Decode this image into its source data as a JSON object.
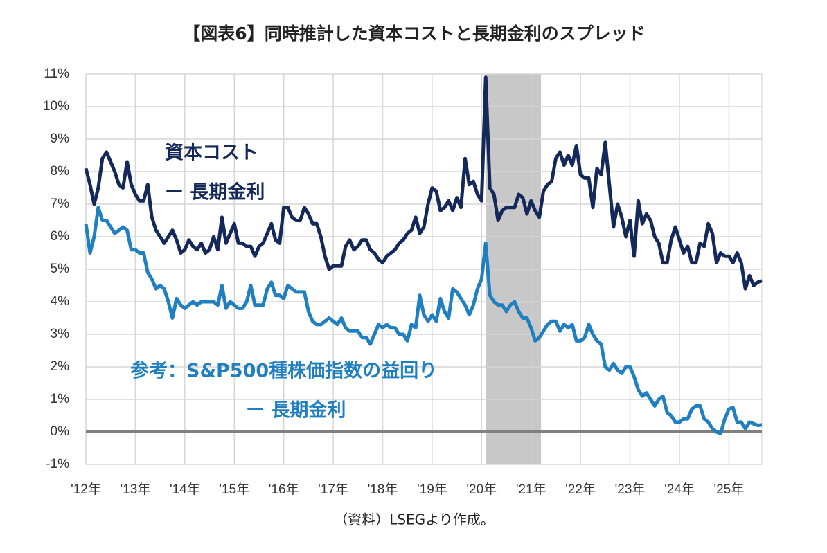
{
  "chart_data": {
    "type": "line",
    "title": "【図表6】同時推計した資本コストと長期金利のスプレッド",
    "source": "（資料）LSEGより作成。",
    "xlim": [
      2012,
      2025.667
    ],
    "ylim": [
      -1,
      11
    ],
    "xticks": [
      {
        "value": 2012,
        "label": "'12年"
      },
      {
        "value": 2013,
        "label": "'13年"
      },
      {
        "value": 2014,
        "label": "'14年"
      },
      {
        "value": 2015,
        "label": "'15年"
      },
      {
        "value": 2016,
        "label": "'16年"
      },
      {
        "value": 2017,
        "label": "'17年"
      },
      {
        "value": 2018,
        "label": "'18年"
      },
      {
        "value": 2019,
        "label": "'19年"
      },
      {
        "value": 2020,
        "label": "'20年"
      },
      {
        "value": 2021,
        "label": "'21年"
      },
      {
        "value": 2022,
        "label": "'22年"
      },
      {
        "value": 2023,
        "label": "'23年"
      },
      {
        "value": 2024,
        "label": "'24年"
      },
      {
        "value": 2025,
        "label": "'25年"
      }
    ],
    "yticks": [
      {
        "value": -1,
        "label": "-1%"
      },
      {
        "value": 0,
        "label": "0%"
      },
      {
        "value": 1,
        "label": "1%"
      },
      {
        "value": 2,
        "label": "2%"
      },
      {
        "value": 3,
        "label": "3%"
      },
      {
        "value": 4,
        "label": "4%"
      },
      {
        "value": 5,
        "label": "5%"
      },
      {
        "value": 6,
        "label": "6%"
      },
      {
        "value": 7,
        "label": "7%"
      },
      {
        "value": 8,
        "label": "8%"
      },
      {
        "value": 9,
        "label": "9%"
      },
      {
        "value": 10,
        "label": "10%"
      },
      {
        "value": 11,
        "label": "11%"
      }
    ],
    "grid": true,
    "zero_line": true,
    "shaded_xrange": [
      2020.08,
      2021.2
    ],
    "x": [
      2012.0,
      2012.083,
      2012.167,
      2012.25,
      2012.333,
      2012.417,
      2012.5,
      2012.583,
      2012.667,
      2012.75,
      2012.833,
      2012.917,
      2013.0,
      2013.083,
      2013.167,
      2013.25,
      2013.333,
      2013.417,
      2013.5,
      2013.583,
      2013.667,
      2013.75,
      2013.833,
      2013.917,
      2014.0,
      2014.083,
      2014.167,
      2014.25,
      2014.333,
      2014.417,
      2014.5,
      2014.583,
      2014.667,
      2014.75,
      2014.833,
      2014.917,
      2015.0,
      2015.083,
      2015.167,
      2015.25,
      2015.333,
      2015.417,
      2015.5,
      2015.583,
      2015.667,
      2015.75,
      2015.833,
      2015.917,
      2016.0,
      2016.083,
      2016.167,
      2016.25,
      2016.333,
      2016.417,
      2016.5,
      2016.583,
      2016.667,
      2016.75,
      2016.833,
      2016.917,
      2017.0,
      2017.083,
      2017.167,
      2017.25,
      2017.333,
      2017.417,
      2017.5,
      2017.583,
      2017.667,
      2017.75,
      2017.833,
      2017.917,
      2018.0,
      2018.083,
      2018.167,
      2018.25,
      2018.333,
      2018.417,
      2018.5,
      2018.583,
      2018.667,
      2018.75,
      2018.833,
      2018.917,
      2019.0,
      2019.083,
      2019.167,
      2019.25,
      2019.333,
      2019.417,
      2019.5,
      2019.583,
      2019.667,
      2019.75,
      2019.833,
      2019.917,
      2020.0,
      2020.083,
      2020.167,
      2020.25,
      2020.333,
      2020.417,
      2020.5,
      2020.583,
      2020.667,
      2020.75,
      2020.833,
      2020.917,
      2021.0,
      2021.083,
      2021.167,
      2021.25,
      2021.333,
      2021.417,
      2021.5,
      2021.583,
      2021.667,
      2021.75,
      2021.833,
      2021.917,
      2022.0,
      2022.083,
      2022.167,
      2022.25,
      2022.333,
      2022.417,
      2022.5,
      2022.583,
      2022.667,
      2022.75,
      2022.833,
      2022.917,
      2023.0,
      2023.083,
      2023.167,
      2023.25,
      2023.333,
      2023.417,
      2023.5,
      2023.583,
      2023.667,
      2023.75,
      2023.833,
      2023.917,
      2024.0,
      2024.083,
      2024.167,
      2024.25,
      2024.333,
      2024.417,
      2024.5,
      2024.583,
      2024.667,
      2024.75,
      2024.833,
      2024.917,
      2025.0,
      2025.083,
      2025.167,
      2025.25,
      2025.333,
      2025.417,
      2025.5,
      2025.583,
      2025.667
    ],
    "series": [
      {
        "label": [
          "資本コスト",
          "ー 長期金利"
        ],
        "color": "#14285a",
        "values": [
          8.1,
          7.6,
          7.0,
          7.5,
          8.4,
          8.6,
          8.3,
          8.0,
          7.6,
          7.5,
          8.3,
          7.6,
          7.3,
          7.1,
          7.1,
          7.6,
          6.6,
          6.2,
          6.0,
          5.8,
          6.0,
          6.2,
          5.9,
          5.5,
          5.6,
          5.9,
          5.7,
          5.6,
          5.8,
          5.5,
          5.6,
          6.0,
          5.6,
          6.6,
          5.8,
          6.1,
          6.4,
          5.8,
          5.8,
          5.7,
          5.7,
          5.4,
          5.7,
          5.8,
          6.1,
          6.4,
          5.9,
          5.8,
          6.9,
          6.9,
          6.6,
          6.5,
          6.5,
          6.9,
          6.7,
          6.4,
          6.4,
          6.0,
          5.4,
          5.0,
          5.1,
          5.1,
          5.1,
          5.7,
          5.9,
          5.6,
          5.7,
          5.9,
          5.9,
          5.6,
          5.5,
          5.3,
          5.2,
          5.4,
          5.5,
          5.6,
          5.8,
          5.9,
          6.1,
          6.2,
          6.6,
          6.1,
          6.3,
          7.0,
          7.5,
          7.4,
          6.8,
          6.9,
          7.1,
          6.8,
          7.2,
          6.9,
          8.4,
          7.6,
          7.7,
          7.3,
          7.1,
          10.9,
          7.5,
          7.3,
          6.5,
          6.8,
          6.9,
          6.9,
          6.9,
          7.3,
          7.2,
          6.7,
          7.1,
          6.8,
          6.6,
          7.4,
          7.6,
          7.7,
          8.4,
          8.6,
          8.2,
          8.5,
          8.2,
          8.8,
          7.9,
          7.8,
          7.8,
          6.9,
          8.1,
          7.9,
          8.9,
          7.6,
          6.3,
          7.0,
          6.6,
          6.0,
          6.5,
          5.4,
          7.1,
          6.4,
          6.7,
          6.5,
          6.0,
          5.8,
          5.2,
          5.2,
          5.9,
          6.3,
          5.9,
          5.5,
          5.7,
          5.2,
          5.2,
          5.8,
          5.7,
          6.4,
          6.1,
          5.2,
          5.5,
          5.4,
          5.4,
          5.2,
          5.5,
          5.2,
          4.4,
          4.8,
          4.5,
          4.6,
          4.65
        ]
      },
      {
        "label": [
          "参考：S&P500種株価指数の益回り",
          "ー 長期金利"
        ],
        "color": "#1f7fc0",
        "values": [
          6.4,
          5.5,
          6.0,
          6.9,
          6.5,
          6.5,
          6.3,
          6.1,
          6.2,
          6.3,
          6.2,
          5.6,
          5.6,
          5.5,
          5.5,
          4.9,
          4.7,
          4.4,
          4.5,
          4.4,
          4.0,
          3.5,
          4.1,
          3.9,
          3.8,
          3.9,
          4.0,
          3.9,
          4.0,
          4.0,
          4.0,
          4.0,
          3.9,
          4.5,
          3.8,
          4.0,
          3.9,
          3.8,
          3.8,
          4.0,
          4.5,
          3.9,
          3.9,
          3.9,
          4.4,
          4.6,
          4.2,
          4.2,
          4.1,
          4.5,
          4.4,
          4.3,
          4.3,
          4.3,
          3.7,
          3.4,
          3.3,
          3.3,
          3.4,
          3.5,
          3.4,
          3.3,
          3.5,
          3.2,
          3.1,
          3.1,
          3.1,
          2.9,
          2.9,
          2.7,
          3.0,
          3.3,
          3.2,
          3.3,
          3.2,
          3.2,
          3.0,
          3.0,
          2.8,
          3.3,
          3.2,
          4.2,
          3.6,
          3.4,
          3.6,
          3.4,
          4.1,
          3.7,
          3.5,
          4.4,
          4.3,
          4.1,
          3.9,
          3.6,
          3.9,
          4.4,
          4.7,
          5.8,
          4.2,
          4.0,
          3.9,
          3.9,
          3.7,
          3.9,
          4.0,
          3.7,
          3.5,
          3.5,
          3.2,
          2.8,
          2.9,
          3.1,
          3.3,
          3.4,
          3.4,
          3.1,
          3.3,
          3.2,
          3.3,
          2.8,
          2.8,
          2.9,
          3.3,
          3.0,
          2.8,
          2.7,
          2.0,
          1.9,
          2.1,
          1.9,
          1.8,
          2.0,
          2.0,
          1.7,
          1.3,
          1.1,
          1.2,
          1.0,
          0.8,
          1.0,
          1.1,
          0.6,
          0.5,
          0.3,
          0.3,
          0.4,
          0.4,
          0.7,
          0.8,
          0.8,
          0.4,
          0.3,
          0.1,
          0.0,
          -0.05,
          0.4,
          0.7,
          0.75,
          0.3,
          0.3,
          0.1,
          0.3,
          0.25,
          0.2,
          0.22
        ]
      }
    ]
  }
}
